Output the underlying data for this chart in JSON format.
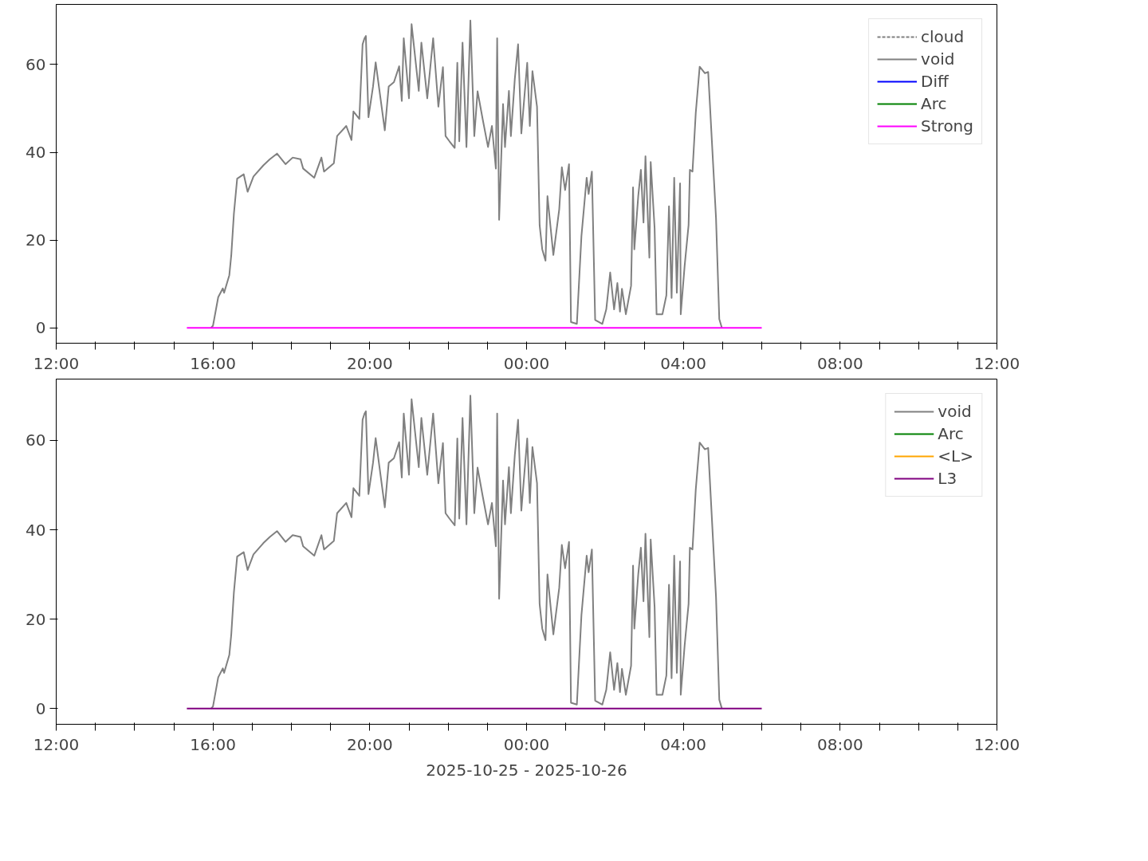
{
  "chart_data": [
    {
      "type": "line",
      "xlim": [
        "2025-10-25T12:00",
        "2025-10-26T12:00"
      ],
      "ylim": [
        -3.5,
        73.7
      ],
      "yticks": [
        0,
        20,
        40,
        60
      ],
      "xticks": [
        {
          "value": "2025-10-25T12:00",
          "label": "12:00"
        },
        {
          "value": "2025-10-25T13:00",
          "label": null
        },
        {
          "value": "2025-10-25T14:00",
          "label": null
        },
        {
          "value": "2025-10-25T15:00",
          "label": null
        },
        {
          "value": "2025-10-25T16:00",
          "label": "16:00"
        },
        {
          "value": "2025-10-25T17:00",
          "label": null
        },
        {
          "value": "2025-10-25T18:00",
          "label": null
        },
        {
          "value": "2025-10-25T19:00",
          "label": null
        },
        {
          "value": "2025-10-25T20:00",
          "label": "20:00"
        },
        {
          "value": "2025-10-25T21:00",
          "label": null
        },
        {
          "value": "2025-10-25T22:00",
          "label": null
        },
        {
          "value": "2025-10-25T23:00",
          "label": null
        },
        {
          "value": "2025-10-26T00:00",
          "label": "00:00"
        },
        {
          "value": "2025-10-26T01:00",
          "label": null
        },
        {
          "value": "2025-10-26T02:00",
          "label": null
        },
        {
          "value": "2025-10-26T03:00",
          "label": null
        },
        {
          "value": "2025-10-26T04:00",
          "label": "04:00"
        },
        {
          "value": "2025-10-26T05:00",
          "label": null
        },
        {
          "value": "2025-10-26T06:00",
          "label": null
        },
        {
          "value": "2025-10-26T07:00",
          "label": null
        },
        {
          "value": "2025-10-26T08:00",
          "label": "08:00"
        },
        {
          "value": "2025-10-26T09:00",
          "label": null
        },
        {
          "value": "2025-10-26T10:00",
          "label": null
        },
        {
          "value": "2025-10-26T11:00",
          "label": null
        },
        {
          "value": "2025-10-26T12:00",
          "label": "12:00"
        }
      ],
      "grid": false,
      "legend": "top right",
      "series": [
        {
          "name": "cloud",
          "color": "#808080",
          "line_style": "dashed"
        },
        {
          "name": "void",
          "color": "#808080",
          "x": [
            "2025-10-25T15:57",
            "2025-10-25T16:00",
            "2025-10-25T16:08",
            "2025-10-25T16:15",
            "2025-10-25T16:17",
            "2025-10-25T16:25",
            "2025-10-25T16:28",
            "2025-10-25T16:32",
            "2025-10-25T16:37",
            "2025-10-25T16:47",
            "2025-10-25T16:53",
            "2025-10-25T17:02",
            "2025-10-25T17:17",
            "2025-10-25T17:27",
            "2025-10-25T17:38",
            "2025-10-25T17:51",
            "2025-10-25T18:02",
            "2025-10-25T18:14",
            "2025-10-25T18:18",
            "2025-10-25T18:35",
            "2025-10-25T18:46",
            "2025-10-25T18:50",
            "2025-10-25T19:05",
            "2025-10-25T19:10",
            "2025-10-25T19:24",
            "2025-10-25T19:32",
            "2025-10-25T19:35",
            "2025-10-25T19:44",
            "2025-10-25T19:49",
            "2025-10-25T19:52",
            "2025-10-25T19:54",
            "2025-10-25T19:58",
            "2025-10-25T20:05",
            "2025-10-25T20:09",
            "2025-10-25T20:23",
            "2025-10-25T20:29",
            "2025-10-25T20:37",
            "2025-10-25T20:45",
            "2025-10-25T20:49",
            "2025-10-25T20:52",
            "2025-10-25T21:00",
            "2025-10-25T21:04",
            "2025-10-25T21:15",
            "2025-10-25T21:19",
            "2025-10-25T21:28",
            "2025-10-25T21:37",
            "2025-10-25T21:45",
            "2025-10-25T21:52",
            "2025-10-25T21:56",
            "2025-10-25T22:02",
            "2025-10-25T22:10",
            "2025-10-25T22:14",
            "2025-10-25T22:17",
            "2025-10-25T22:22",
            "2025-10-25T22:28",
            "2025-10-25T22:34",
            "2025-10-25T22:40",
            "2025-10-25T22:45",
            "2025-10-25T22:53",
            "2025-10-25T23:01",
            "2025-10-25T23:07",
            "2025-10-25T23:13",
            "2025-10-25T23:15",
            "2025-10-25T23:18",
            "2025-10-25T23:24",
            "2025-10-25T23:27",
            "2025-10-25T23:33",
            "2025-10-25T23:36",
            "2025-10-25T23:42",
            "2025-10-25T23:47",
            "2025-10-25T23:52",
            "2025-10-26T00:01",
            "2025-10-26T00:05",
            "2025-10-26T00:09",
            "2025-10-26T00:16",
            "2025-10-26T00:20",
            "2025-10-26T00:24",
            "2025-10-26T00:29",
            "2025-10-26T00:32",
            "2025-10-26T00:41",
            "2025-10-26T00:50",
            "2025-10-26T00:54",
            "2025-10-26T00:59",
            "2025-10-26T01:05",
            "2025-10-26T01:08",
            "2025-10-26T01:17",
            "2025-10-26T01:24",
            "2025-10-26T01:32",
            "2025-10-26T01:35",
            "2025-10-26T01:40",
            "2025-10-26T01:45",
            "2025-10-26T01:56",
            "2025-10-26T02:02",
            "2025-10-26T02:08",
            "2025-10-26T02:14",
            "2025-10-26T02:19",
            "2025-10-26T02:23",
            "2025-10-26T02:26",
            "2025-10-26T02:32",
            "2025-10-26T02:40",
            "2025-10-26T02:43",
            "2025-10-26T02:45",
            "2025-10-26T02:51",
            "2025-10-26T02:55",
            "2025-10-26T02:59",
            "2025-10-26T03:02",
            "2025-10-26T03:08",
            "2025-10-26T03:10",
            "2025-10-26T03:16",
            "2025-10-26T03:19",
            "2025-10-26T03:28",
            "2025-10-26T03:34",
            "2025-10-26T03:38",
            "2025-10-26T03:42",
            "2025-10-26T03:46",
            "2025-10-26T03:50",
            "2025-10-26T03:55",
            "2025-10-26T03:56",
            "2025-10-26T04:02",
            "2025-10-26T04:08",
            "2025-10-26T04:10",
            "2025-10-26T04:14",
            "2025-10-26T04:19",
            "2025-10-26T04:25",
            "2025-10-26T04:33",
            "2025-10-26T04:38",
            "2025-10-26T04:50",
            "2025-10-26T04:55",
            "2025-10-26T04:59"
          ],
          "values": [
            0,
            0.5,
            7,
            9,
            8,
            12,
            16.6,
            26,
            34,
            35,
            31,
            34.5,
            37,
            38.4,
            39.7,
            37.3,
            38.8,
            38.4,
            36.3,
            34.2,
            38.8,
            35.6,
            37.5,
            43.7,
            46,
            42.8,
            49.3,
            47.6,
            64.6,
            66,
            66.5,
            48,
            55,
            60.5,
            45,
            55,
            56,
            59.6,
            51.7,
            66,
            52.3,
            69.2,
            54,
            65,
            52.3,
            66,
            50.4,
            59.4,
            43.7,
            42.5,
            41,
            60.4,
            42.5,
            65,
            41.2,
            70,
            43.7,
            53.9,
            47.4,
            41.2,
            46,
            36.3,
            66,
            24.6,
            51,
            41.2,
            54,
            43.7,
            56.7,
            64.6,
            44.3,
            60.4,
            46,
            58.5,
            50.4,
            23.4,
            17.9,
            15.3,
            30,
            16.6,
            27,
            36.6,
            31.4,
            37.3,
            1.3,
            0.9,
            20.9,
            34.2,
            30.5,
            35.6,
            1.8,
            0.9,
            4.2,
            12.6,
            4.2,
            10.2,
            3.7,
            8.9,
            3.1,
            9.6,
            32,
            17.9,
            30.1,
            36,
            24,
            39.1,
            16,
            37.8,
            22.7,
            3.1,
            3.1,
            7.4,
            27.7,
            6.8,
            34.2,
            8,
            32.9,
            3.1,
            14.2,
            23.4,
            36,
            35.6,
            49,
            59.5,
            58,
            58.3,
            25,
            2,
            0
          ]
        },
        {
          "name": "Diff",
          "color": "#0000ff"
        },
        {
          "name": "Arc",
          "color": "#008000"
        },
        {
          "name": "Strong",
          "color": "#ff00ff",
          "x": [
            "2025-10-25T15:20",
            "2025-10-26T06:00"
          ],
          "values": [
            0,
            0
          ]
        }
      ]
    },
    {
      "type": "line",
      "xlim": [
        "2025-10-25T12:00",
        "2025-10-26T12:00"
      ],
      "ylim": [
        -3.5,
        73.7
      ],
      "yticks": [
        0,
        20,
        40,
        60
      ],
      "xticks": [
        {
          "value": "2025-10-25T12:00",
          "label": "12:00"
        },
        {
          "value": "2025-10-25T13:00",
          "label": null
        },
        {
          "value": "2025-10-25T14:00",
          "label": null
        },
        {
          "value": "2025-10-25T15:00",
          "label": null
        },
        {
          "value": "2025-10-25T16:00",
          "label": "16:00"
        },
        {
          "value": "2025-10-25T17:00",
          "label": null
        },
        {
          "value": "2025-10-25T18:00",
          "label": null
        },
        {
          "value": "2025-10-25T19:00",
          "label": null
        },
        {
          "value": "2025-10-25T20:00",
          "label": "20:00"
        },
        {
          "value": "2025-10-25T21:00",
          "label": null
        },
        {
          "value": "2025-10-25T22:00",
          "label": null
        },
        {
          "value": "2025-10-25T23:00",
          "label": null
        },
        {
          "value": "2025-10-26T00:00",
          "label": "00:00"
        },
        {
          "value": "2025-10-26T01:00",
          "label": null
        },
        {
          "value": "2025-10-26T02:00",
          "label": null
        },
        {
          "value": "2025-10-26T03:00",
          "label": null
        },
        {
          "value": "2025-10-26T04:00",
          "label": "04:00"
        },
        {
          "value": "2025-10-26T05:00",
          "label": null
        },
        {
          "value": "2025-10-26T06:00",
          "label": null
        },
        {
          "value": "2025-10-26T07:00",
          "label": null
        },
        {
          "value": "2025-10-26T08:00",
          "label": "08:00"
        },
        {
          "value": "2025-10-26T09:00",
          "label": null
        },
        {
          "value": "2025-10-26T10:00",
          "label": null
        },
        {
          "value": "2025-10-26T11:00",
          "label": null
        },
        {
          "value": "2025-10-26T12:00",
          "label": "12:00"
        }
      ],
      "xlabel": "2025-10-25 - 2025-10-26",
      "grid": false,
      "legend": "top right",
      "series": [
        {
          "name": "void",
          "color": "#808080",
          "x": [
            "2025-10-25T15:57",
            "2025-10-25T16:00",
            "2025-10-25T16:08",
            "2025-10-25T16:15",
            "2025-10-25T16:17",
            "2025-10-25T16:25",
            "2025-10-25T16:28",
            "2025-10-25T16:32",
            "2025-10-25T16:37",
            "2025-10-25T16:47",
            "2025-10-25T16:53",
            "2025-10-25T17:02",
            "2025-10-25T17:17",
            "2025-10-25T17:27",
            "2025-10-25T17:38",
            "2025-10-25T17:51",
            "2025-10-25T18:02",
            "2025-10-25T18:14",
            "2025-10-25T18:18",
            "2025-10-25T18:35",
            "2025-10-25T18:46",
            "2025-10-25T18:50",
            "2025-10-25T19:05",
            "2025-10-25T19:10",
            "2025-10-25T19:24",
            "2025-10-25T19:32",
            "2025-10-25T19:35",
            "2025-10-25T19:44",
            "2025-10-25T19:49",
            "2025-10-25T19:52",
            "2025-10-25T19:54",
            "2025-10-25T19:58",
            "2025-10-25T20:05",
            "2025-10-25T20:09",
            "2025-10-25T20:23",
            "2025-10-25T20:29",
            "2025-10-25T20:37",
            "2025-10-25T20:45",
            "2025-10-25T20:49",
            "2025-10-25T20:52",
            "2025-10-25T21:00",
            "2025-10-25T21:04",
            "2025-10-25T21:15",
            "2025-10-25T21:19",
            "2025-10-25T21:28",
            "2025-10-25T21:37",
            "2025-10-25T21:45",
            "2025-10-25T21:52",
            "2025-10-25T21:56",
            "2025-10-25T22:02",
            "2025-10-25T22:10",
            "2025-10-25T22:14",
            "2025-10-25T22:17",
            "2025-10-25T22:22",
            "2025-10-25T22:28",
            "2025-10-25T22:34",
            "2025-10-25T22:40",
            "2025-10-25T22:45",
            "2025-10-25T22:53",
            "2025-10-25T23:01",
            "2025-10-25T23:07",
            "2025-10-25T23:13",
            "2025-10-25T23:15",
            "2025-10-25T23:18",
            "2025-10-25T23:24",
            "2025-10-25T23:27",
            "2025-10-25T23:33",
            "2025-10-25T23:36",
            "2025-10-25T23:42",
            "2025-10-25T23:47",
            "2025-10-25T23:52",
            "2025-10-26T00:01",
            "2025-10-26T00:05",
            "2025-10-26T00:09",
            "2025-10-26T00:16",
            "2025-10-26T00:20",
            "2025-10-26T00:24",
            "2025-10-26T00:29",
            "2025-10-26T00:32",
            "2025-10-26T00:41",
            "2025-10-26T00:50",
            "2025-10-26T00:54",
            "2025-10-26T00:59",
            "2025-10-26T01:05",
            "2025-10-26T01:08",
            "2025-10-26T01:17",
            "2025-10-26T01:24",
            "2025-10-26T01:32",
            "2025-10-26T01:35",
            "2025-10-26T01:40",
            "2025-10-26T01:45",
            "2025-10-26T01:56",
            "2025-10-26T02:02",
            "2025-10-26T02:08",
            "2025-10-26T02:14",
            "2025-10-26T02:19",
            "2025-10-26T02:23",
            "2025-10-26T02:26",
            "2025-10-26T02:32",
            "2025-10-26T02:40",
            "2025-10-26T02:43",
            "2025-10-26T02:45",
            "2025-10-26T02:51",
            "2025-10-26T02:55",
            "2025-10-26T02:59",
            "2025-10-26T03:02",
            "2025-10-26T03:08",
            "2025-10-26T03:10",
            "2025-10-26T03:16",
            "2025-10-26T03:19",
            "2025-10-26T03:28",
            "2025-10-26T03:34",
            "2025-10-26T03:38",
            "2025-10-26T03:42",
            "2025-10-26T03:46",
            "2025-10-26T03:50",
            "2025-10-26T03:55",
            "2025-10-26T03:56",
            "2025-10-26T04:02",
            "2025-10-26T04:08",
            "2025-10-26T04:10",
            "2025-10-26T04:14",
            "2025-10-26T04:19",
            "2025-10-26T04:25",
            "2025-10-26T04:33",
            "2025-10-26T04:38",
            "2025-10-26T04:50",
            "2025-10-26T04:55",
            "2025-10-26T04:59"
          ],
          "values": [
            0,
            0.5,
            7,
            9,
            8,
            12,
            16.6,
            26,
            34,
            35,
            31,
            34.5,
            37,
            38.4,
            39.7,
            37.3,
            38.8,
            38.4,
            36.3,
            34.2,
            38.8,
            35.6,
            37.5,
            43.7,
            46,
            42.8,
            49.3,
            47.6,
            64.6,
            66,
            66.5,
            48,
            55,
            60.5,
            45,
            55,
            56,
            59.6,
            51.7,
            66,
            52.3,
            69.2,
            54,
            65,
            52.3,
            66,
            50.4,
            59.4,
            43.7,
            42.5,
            41,
            60.4,
            42.5,
            65,
            41.2,
            70,
            43.7,
            53.9,
            47.4,
            41.2,
            46,
            36.3,
            66,
            24.6,
            51,
            41.2,
            54,
            43.7,
            56.7,
            64.6,
            44.3,
            60.4,
            46,
            58.5,
            50.4,
            23.4,
            17.9,
            15.3,
            30,
            16.6,
            27,
            36.6,
            31.4,
            37.3,
            1.3,
            0.9,
            20.9,
            34.2,
            30.5,
            35.6,
            1.8,
            0.9,
            4.2,
            12.6,
            4.2,
            10.2,
            3.7,
            8.9,
            3.1,
            9.6,
            32,
            17.9,
            30.1,
            36,
            24,
            39.1,
            16,
            37.8,
            22.7,
            3.1,
            3.1,
            7.4,
            27.7,
            6.8,
            34.2,
            8,
            32.9,
            3.1,
            14.2,
            23.4,
            36,
            35.6,
            49,
            59.5,
            58,
            58.3,
            25,
            2,
            0
          ]
        },
        {
          "name": "Arc",
          "color": "#008000"
        },
        {
          "name": "<L>",
          "color": "#ffa500"
        },
        {
          "name": "L3",
          "color": "#800080",
          "x": [
            "2025-10-25T15:20",
            "2025-10-26T06:00"
          ],
          "values": [
            0,
            0
          ]
        }
      ]
    }
  ]
}
